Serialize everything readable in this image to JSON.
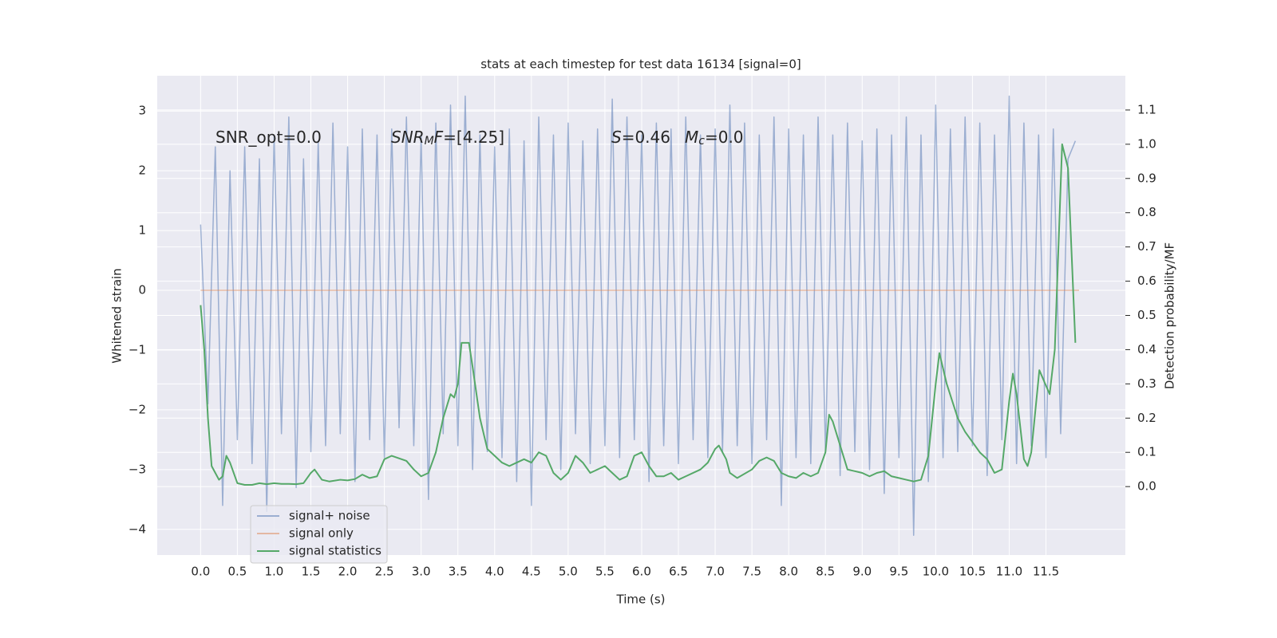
{
  "chart_data": {
    "type": "line",
    "title": "stats at each timestep for test data 16134 [signal=0]",
    "x_label": "Time (s)",
    "y_label": "Whitened strain",
    "y2_label": "Detection probability/MF",
    "xlim": [
      -0.59,
      12.58
    ],
    "ylim": [
      -4.43,
      3.59
    ],
    "y2lim": [
      -0.2,
      1.2
    ],
    "grid": true,
    "legend_position": "lower left",
    "xticks": [
      {
        "value": 0,
        "label": "0.0"
      },
      {
        "value": 0.5,
        "label": "0.5"
      },
      {
        "value": 1,
        "label": "1.0"
      },
      {
        "value": 1.5,
        "label": "1.5"
      },
      {
        "value": 2,
        "label": "2.0"
      },
      {
        "value": 2.5,
        "label": "2.5"
      },
      {
        "value": 3,
        "label": "3.0"
      },
      {
        "value": 3.5,
        "label": "3.5"
      },
      {
        "value": 4,
        "label": "4.0"
      },
      {
        "value": 4.5,
        "label": "4.5"
      },
      {
        "value": 5,
        "label": "5.0"
      },
      {
        "value": 5.5,
        "label": "5.5"
      },
      {
        "value": 6,
        "label": "6.0"
      },
      {
        "value": 6.5,
        "label": "6.5"
      },
      {
        "value": 7,
        "label": "7.0"
      },
      {
        "value": 7.5,
        "label": "7.5"
      },
      {
        "value": 8,
        "label": "8.0"
      },
      {
        "value": 8.5,
        "label": "8.5"
      },
      {
        "value": 9,
        "label": "9.0"
      },
      {
        "value": 9.5,
        "label": "9.5"
      },
      {
        "value": 10,
        "label": "10.0"
      },
      {
        "value": 10.5,
        "label": "10.5"
      },
      {
        "value": 11,
        "label": "11.0"
      },
      {
        "value": 11.5,
        "label": "11.5"
      }
    ],
    "yticks": [
      {
        "value": -4,
        "label": "−4"
      },
      {
        "value": -3,
        "label": "−3"
      },
      {
        "value": -2,
        "label": "−2"
      },
      {
        "value": -1,
        "label": "−1"
      },
      0,
      1,
      2,
      3
    ],
    "y2ticks": [
      {
        "value": 0,
        "label": "0.0"
      },
      {
        "value": 0.1,
        "label": "0.1"
      },
      {
        "value": 0.2,
        "label": "0.2"
      },
      {
        "value": 0.3,
        "label": "0.3"
      },
      {
        "value": 0.4,
        "label": "0.4"
      },
      {
        "value": 0.5,
        "label": "0.5"
      },
      {
        "value": 0.6,
        "label": "0.6"
      },
      {
        "value": 0.7,
        "label": "0.7"
      },
      {
        "value": 0.8,
        "label": "0.8"
      },
      {
        "value": 0.9,
        "label": "0.9"
      },
      {
        "value": 1,
        "label": "1.0"
      },
      {
        "value": 1.1,
        "label": "1.1"
      }
    ],
    "annotations": [
      {
        "parts": [
          {
            "text": "SNR_opt=0.0"
          }
        ]
      },
      {
        "parts": [
          {
            "text": "SNR",
            "italic": true
          },
          {
            "text": "M",
            "italic": true,
            "sub": true
          },
          {
            "text": "F",
            "italic": true
          },
          {
            "text": "=[4.25]"
          }
        ]
      },
      {
        "parts": [
          {
            "text": "S",
            "italic": true
          },
          {
            "text": "=0.46"
          }
        ]
      },
      {
        "parts": [
          {
            "text": "M",
            "italic": true
          },
          {
            "text": "c",
            "italic": true,
            "sub": true
          },
          {
            "text": "=0.0"
          }
        ]
      }
    ],
    "series": [
      {
        "name": "signal+ noise",
        "color": "#4c72b0",
        "alpha": 0.5,
        "x": [
          0,
          0.1,
          0.2,
          0.3,
          0.4,
          0.5,
          0.6,
          0.7,
          0.8,
          0.9,
          1,
          1.1,
          1.2,
          1.3,
          1.4,
          1.5,
          1.6,
          1.7,
          1.8,
          1.9,
          2,
          2.1,
          2.2,
          2.3,
          2.4,
          2.5,
          2.6,
          2.7,
          2.8,
          2.9,
          3,
          3.1,
          3.2,
          3.3,
          3.4,
          3.5,
          3.6,
          3.7,
          3.8,
          3.9,
          4,
          4.1,
          4.2,
          4.3,
          4.4,
          4.5,
          4.6,
          4.7,
          4.8,
          4.9,
          5,
          5.1,
          5.2,
          5.3,
          5.4,
          5.5,
          5.6,
          5.7,
          5.8,
          5.9,
          6,
          6.1,
          6.2,
          6.3,
          6.4,
          6.5,
          6.6,
          6.7,
          6.8,
          6.9,
          7,
          7.1,
          7.2,
          7.3,
          7.4,
          7.5,
          7.6,
          7.7,
          7.8,
          7.9,
          8,
          8.1,
          8.2,
          8.3,
          8.4,
          8.5,
          8.6,
          8.7,
          8.8,
          8.9,
          9,
          9.1,
          9.2,
          9.3,
          9.4,
          9.5,
          9.6,
          9.7,
          9.8,
          9.9,
          10,
          10.1,
          10.2,
          10.3,
          10.4,
          10.5,
          10.6,
          10.7,
          10.8,
          10.9,
          11,
          11.1,
          11.2,
          11.3,
          11.4,
          11.5,
          11.6,
          11.7,
          11.8,
          11.9
        ],
        "values": [
          1.1,
          -1.9,
          2.4,
          -3.6,
          2.0,
          -2.5,
          2.4,
          -2.9,
          2.2,
          -3.7,
          2.6,
          -2.4,
          2.9,
          -3.3,
          2.2,
          -2.7,
          2.5,
          -2.6,
          2.8,
          -2.4,
          2.4,
          -3.2,
          2.7,
          -2.5,
          2.6,
          -2.8,
          2.7,
          -2.3,
          2.9,
          -2.6,
          2.6,
          -3.5,
          2.8,
          -2.4,
          3.1,
          -2.6,
          3.25,
          -3.0,
          2.6,
          -2.7,
          2.4,
          -2.8,
          2.7,
          -3.2,
          2.5,
          -3.6,
          2.9,
          -2.5,
          2.6,
          -3.0,
          2.8,
          -2.4,
          2.5,
          -2.9,
          2.7,
          -2.6,
          3.2,
          -2.8,
          2.9,
          -2.5,
          2.6,
          -3.2,
          2.8,
          -2.6,
          2.7,
          -2.9,
          2.9,
          -2.5,
          2.6,
          -2.8,
          2.7,
          -2.7,
          3.1,
          -2.6,
          2.8,
          -2.9,
          2.6,
          -2.5,
          2.9,
          -3.6,
          2.7,
          -2.8,
          2.6,
          -2.9,
          2.9,
          -2.7,
          2.6,
          -3.1,
          2.8,
          -2.7,
          2.5,
          -3.0,
          2.7,
          -3.4,
          2.6,
          -2.8,
          2.9,
          -4.1,
          2.6,
          -3.2,
          3.1,
          -2.8,
          2.7,
          -2.7,
          2.9,
          -2.6,
          2.8,
          -3.1,
          2.6,
          -2.5,
          3.25,
          -2.9,
          2.8,
          -2.6,
          2.6,
          -2.8,
          2.7,
          -2.4,
          2.2,
          2.5
        ]
      },
      {
        "name": "signal only",
        "color": "#dd8452",
        "alpha": 0.5,
        "x": [
          0,
          11.95
        ],
        "values": [
          0,
          0
        ]
      },
      {
        "name": "signal statistics",
        "color": "#55a868",
        "alpha": 1,
        "axis": "y2",
        "x": [
          0,
          0.05,
          0.1,
          0.15,
          0.2,
          0.25,
          0.3,
          0.35,
          0.4,
          0.5,
          0.6,
          0.7,
          0.8,
          0.9,
          1,
          1.1,
          1.2,
          1.3,
          1.4,
          1.5,
          1.55,
          1.65,
          1.75,
          1.9,
          2,
          2.1,
          2.2,
          2.3,
          2.4,
          2.5,
          2.6,
          2.8,
          2.9,
          3,
          3.1,
          3.2,
          3.3,
          3.4,
          3.45,
          3.5,
          3.55,
          3.65,
          3.7,
          3.8,
          3.9,
          4,
          4.1,
          4.2,
          4.3,
          4.4,
          4.5,
          4.6,
          4.7,
          4.8,
          4.9,
          5,
          5.1,
          5.2,
          5.3,
          5.5,
          5.6,
          5.7,
          5.8,
          5.9,
          6,
          6.1,
          6.2,
          6.3,
          6.4,
          6.5,
          6.6,
          6.8,
          6.9,
          7,
          7.05,
          7.15,
          7.2,
          7.3,
          7.5,
          7.6,
          7.7,
          7.8,
          7.9,
          8,
          8.1,
          8.2,
          8.3,
          8.4,
          8.5,
          8.55,
          8.6,
          8.7,
          8.8,
          8.9,
          9,
          9.1,
          9.2,
          9.3,
          9.4,
          9.5,
          9.6,
          9.7,
          9.8,
          9.9,
          10,
          10.05,
          10.15,
          10.3,
          10.4,
          10.5,
          10.6,
          10.7,
          10.8,
          10.9,
          11,
          11.05,
          11.1,
          11.2,
          11.25,
          11.3,
          11.41,
          11.55,
          11.62,
          11.72,
          11.8,
          11.9
        ],
        "values": [
          0.53,
          0.4,
          0.2,
          0.06,
          0.04,
          0.02,
          0.03,
          0.09,
          0.07,
          0.01,
          0.005,
          0.005,
          0.01,
          0.007,
          0.01,
          0.008,
          0.008,
          0.007,
          0.01,
          0.04,
          0.05,
          0.02,
          0.015,
          0.02,
          0.018,
          0.022,
          0.035,
          0.025,
          0.03,
          0.08,
          0.09,
          0.075,
          0.05,
          0.03,
          0.04,
          0.1,
          0.2,
          0.27,
          0.26,
          0.3,
          0.42,
          0.42,
          0.35,
          0.2,
          0.11,
          0.09,
          0.07,
          0.06,
          0.07,
          0.08,
          0.07,
          0.1,
          0.09,
          0.04,
          0.02,
          0.04,
          0.09,
          0.07,
          0.04,
          0.06,
          0.04,
          0.02,
          0.03,
          0.09,
          0.1,
          0.06,
          0.03,
          0.03,
          0.04,
          0.02,
          0.03,
          0.05,
          0.07,
          0.11,
          0.12,
          0.08,
          0.04,
          0.025,
          0.05,
          0.075,
          0.085,
          0.075,
          0.04,
          0.03,
          0.025,
          0.04,
          0.03,
          0.04,
          0.1,
          0.21,
          0.19,
          0.12,
          0.05,
          0.045,
          0.04,
          0.03,
          0.04,
          0.045,
          0.03,
          0.025,
          0.02,
          0.015,
          0.02,
          0.09,
          0.3,
          0.39,
          0.3,
          0.2,
          0.16,
          0.13,
          0.1,
          0.08,
          0.04,
          0.05,
          0.25,
          0.33,
          0.27,
          0.08,
          0.06,
          0.1,
          0.34,
          0.27,
          0.4,
          1.0,
          0.93,
          0.42
        ]
      }
    ]
  }
}
